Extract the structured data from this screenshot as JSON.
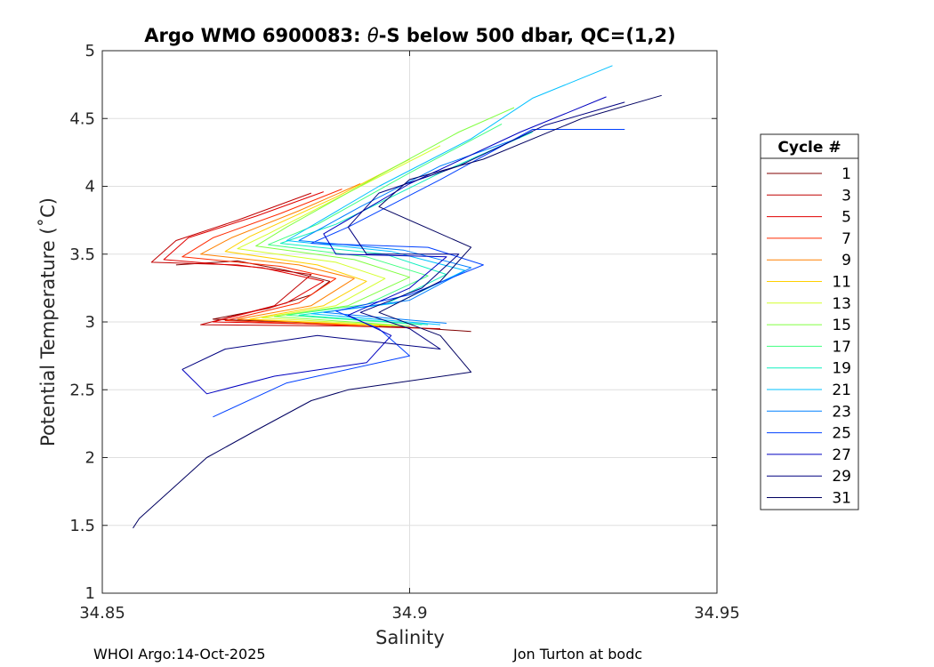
{
  "chart_data": {
    "type": "line",
    "title_prefix": "Argo WMO 6900083: ",
    "title_theta": "θ",
    "title_suffix": "-S below 500 dbar,  QC=(1,2)",
    "xlabel": "Salinity",
    "ylabel": "Potential Temperature (˚C)",
    "xlim": [
      34.85,
      34.95
    ],
    "ylim": [
      1,
      5
    ],
    "xticks": [
      34.85,
      34.9,
      34.95
    ],
    "xtick_labels": [
      "34.85",
      "34.9",
      "34.95"
    ],
    "yticks": [
      1,
      1.5,
      2,
      2.5,
      3,
      3.5,
      4,
      4.5,
      5
    ],
    "ytick_labels": [
      "1",
      "1.5",
      "2",
      "2.5",
      "3",
      "3.5",
      "4",
      "4.5",
      "5"
    ],
    "grid": true,
    "legend": {
      "title": "Cycle #",
      "position": "right",
      "entries": [
        "1",
        "3",
        "5",
        "7",
        "9",
        "11",
        "13",
        "15",
        "17",
        "19",
        "21",
        "23",
        "25",
        "27",
        "29",
        "31"
      ],
      "colors": [
        "#800000",
        "#c00000",
        "#e00000",
        "#ff2a00",
        "#ff8000",
        "#ffd000",
        "#d4ff2a",
        "#80ff40",
        "#40ff80",
        "#10f0c0",
        "#00c0ff",
        "#0080ff",
        "#0040ff",
        "#0000c0",
        "#000080",
        "#000060"
      ]
    },
    "series": [
      {
        "name": "1",
        "points": [
          [
            34.862,
            3.42
          ],
          [
            34.872,
            3.45
          ],
          [
            34.88,
            3.38
          ],
          [
            34.887,
            3.3
          ],
          [
            34.884,
            3.2
          ],
          [
            34.877,
            3.1
          ],
          [
            34.868,
            3.02
          ],
          [
            34.88,
            3.0
          ],
          [
            34.9,
            2.96
          ],
          [
            34.91,
            2.93
          ]
        ]
      },
      {
        "name": "3",
        "points": [
          [
            34.884,
            3.95
          ],
          [
            34.872,
            3.75
          ],
          [
            34.862,
            3.6
          ],
          [
            34.858,
            3.44
          ],
          [
            34.872,
            3.42
          ],
          [
            34.884,
            3.35
          ],
          [
            34.878,
            3.12
          ],
          [
            34.866,
            2.98
          ],
          [
            34.89,
            2.97
          ],
          [
            34.905,
            2.95
          ]
        ]
      },
      {
        "name": "5",
        "points": [
          [
            34.886,
            3.96
          ],
          [
            34.875,
            3.78
          ],
          [
            34.864,
            3.62
          ],
          [
            34.86,
            3.46
          ],
          [
            34.876,
            3.4
          ],
          [
            34.886,
            3.3
          ],
          [
            34.88,
            3.14
          ],
          [
            34.868,
            3.0
          ],
          [
            34.89,
            2.98
          ]
        ]
      },
      {
        "name": "7",
        "points": [
          [
            34.889,
            3.98
          ],
          [
            34.879,
            3.8
          ],
          [
            34.868,
            3.62
          ],
          [
            34.863,
            3.48
          ],
          [
            34.879,
            3.41
          ],
          [
            34.888,
            3.32
          ],
          [
            34.882,
            3.14
          ],
          [
            34.87,
            3.01
          ],
          [
            34.892,
            2.97
          ]
        ]
      },
      {
        "name": "9",
        "points": [
          [
            34.892,
            4.02
          ],
          [
            34.882,
            3.82
          ],
          [
            34.871,
            3.62
          ],
          [
            34.866,
            3.5
          ],
          [
            34.882,
            3.42
          ],
          [
            34.891,
            3.32
          ],
          [
            34.884,
            3.12
          ],
          [
            34.872,
            3.02
          ],
          [
            34.895,
            2.97
          ]
        ]
      },
      {
        "name": "11",
        "points": [
          [
            34.9,
            4.2
          ],
          [
            34.888,
            3.92
          ],
          [
            34.874,
            3.63
          ],
          [
            34.87,
            3.52
          ],
          [
            34.885,
            3.42
          ],
          [
            34.893,
            3.3
          ],
          [
            34.886,
            3.12
          ],
          [
            34.874,
            3.02
          ],
          [
            34.897,
            2.97
          ]
        ]
      },
      {
        "name": "13",
        "points": [
          [
            34.905,
            4.3
          ],
          [
            34.892,
            4.0
          ],
          [
            34.877,
            3.65
          ],
          [
            34.872,
            3.54
          ],
          [
            34.888,
            3.44
          ],
          [
            34.896,
            3.32
          ],
          [
            34.888,
            3.12
          ],
          [
            34.876,
            3.03
          ],
          [
            34.899,
            2.97
          ]
        ]
      },
      {
        "name": "15",
        "points": [
          [
            34.917,
            4.58
          ],
          [
            34.908,
            4.4
          ],
          [
            34.895,
            4.08
          ],
          [
            34.88,
            3.7
          ],
          [
            34.875,
            3.56
          ],
          [
            34.891,
            3.46
          ],
          [
            34.9,
            3.33
          ],
          [
            34.89,
            3.12
          ],
          [
            34.878,
            3.04
          ],
          [
            34.9,
            2.97
          ]
        ]
      },
      {
        "name": "17",
        "points": [
          [
            34.915,
            4.46
          ],
          [
            34.9,
            4.1
          ],
          [
            34.885,
            3.72
          ],
          [
            34.877,
            3.57
          ],
          [
            34.893,
            3.48
          ],
          [
            34.903,
            3.34
          ],
          [
            34.893,
            3.13
          ],
          [
            34.88,
            3.05
          ],
          [
            34.902,
            2.98
          ]
        ]
      },
      {
        "name": "19",
        "points": [
          [
            34.92,
            4.4
          ],
          [
            34.905,
            4.1
          ],
          [
            34.888,
            3.72
          ],
          [
            34.879,
            3.58
          ],
          [
            34.896,
            3.5
          ],
          [
            34.906,
            3.35
          ],
          [
            34.896,
            3.13
          ],
          [
            34.882,
            3.05
          ],
          [
            34.903,
            2.98
          ]
        ]
      },
      {
        "name": "21",
        "points": [
          [
            34.933,
            4.89
          ],
          [
            34.92,
            4.65
          ],
          [
            34.91,
            4.35
          ],
          [
            34.895,
            4.0
          ],
          [
            34.88,
            3.6
          ],
          [
            34.897,
            3.52
          ],
          [
            34.909,
            3.38
          ],
          [
            34.898,
            3.14
          ],
          [
            34.884,
            3.06
          ],
          [
            34.905,
            2.98
          ]
        ]
      },
      {
        "name": "23",
        "points": [
          [
            34.918,
            4.36
          ],
          [
            34.905,
            4.15
          ],
          [
            34.892,
            3.85
          ],
          [
            34.882,
            3.6
          ],
          [
            34.899,
            3.53
          ],
          [
            34.91,
            3.4
          ],
          [
            34.9,
            3.16
          ],
          [
            34.886,
            3.07
          ],
          [
            34.906,
            2.99
          ]
        ]
      },
      {
        "name": "25",
        "points": [
          [
            34.935,
            4.42
          ],
          [
            34.92,
            4.42
          ],
          [
            34.905,
            4.05
          ],
          [
            34.89,
            3.7
          ],
          [
            34.884,
            3.58
          ],
          [
            34.903,
            3.55
          ],
          [
            34.912,
            3.42
          ],
          [
            34.9,
            3.2
          ],
          [
            34.888,
            3.08
          ],
          [
            34.895,
            2.95
          ],
          [
            34.9,
            2.75
          ],
          [
            34.88,
            2.55
          ],
          [
            34.868,
            2.3
          ]
        ]
      },
      {
        "name": "27",
        "points": [
          [
            34.932,
            4.66
          ],
          [
            34.918,
            4.4
          ],
          [
            34.9,
            4.02
          ],
          [
            34.886,
            3.65
          ],
          [
            34.888,
            3.5
          ],
          [
            34.906,
            3.48
          ],
          [
            34.9,
            3.25
          ],
          [
            34.89,
            3.05
          ],
          [
            34.897,
            2.9
          ],
          [
            34.893,
            2.7
          ],
          [
            34.878,
            2.6
          ],
          [
            34.867,
            2.47
          ],
          [
            34.863,
            2.65
          ]
        ]
      },
      {
        "name": "29",
        "points": [
          [
            34.935,
            4.62
          ],
          [
            34.922,
            4.45
          ],
          [
            34.908,
            4.15
          ],
          [
            34.895,
            3.95
          ],
          [
            34.89,
            3.7
          ],
          [
            34.893,
            3.5
          ],
          [
            34.908,
            3.5
          ],
          [
            34.902,
            3.25
          ],
          [
            34.892,
            3.07
          ],
          [
            34.9,
            2.95
          ],
          [
            34.905,
            2.8
          ],
          [
            34.885,
            2.9
          ],
          [
            34.87,
            2.8
          ],
          [
            34.863,
            2.65
          ]
        ]
      },
      {
        "name": "31",
        "points": [
          [
            34.941,
            4.67
          ],
          [
            34.928,
            4.5
          ],
          [
            34.912,
            4.2
          ],
          [
            34.9,
            4.05
          ],
          [
            34.895,
            3.85
          ],
          [
            34.91,
            3.55
          ],
          [
            34.905,
            3.3
          ],
          [
            34.895,
            3.07
          ],
          [
            34.905,
            2.9
          ],
          [
            34.91,
            2.63
          ],
          [
            34.89,
            2.5
          ],
          [
            34.884,
            2.42
          ],
          [
            34.875,
            2.2
          ],
          [
            34.867,
            2.0
          ],
          [
            34.856,
            1.55
          ],
          [
            34.855,
            1.48
          ]
        ]
      }
    ]
  },
  "footer": {
    "left": "WHOI Argo:14-Oct-2025",
    "right": "Jon Turton at bodc"
  }
}
